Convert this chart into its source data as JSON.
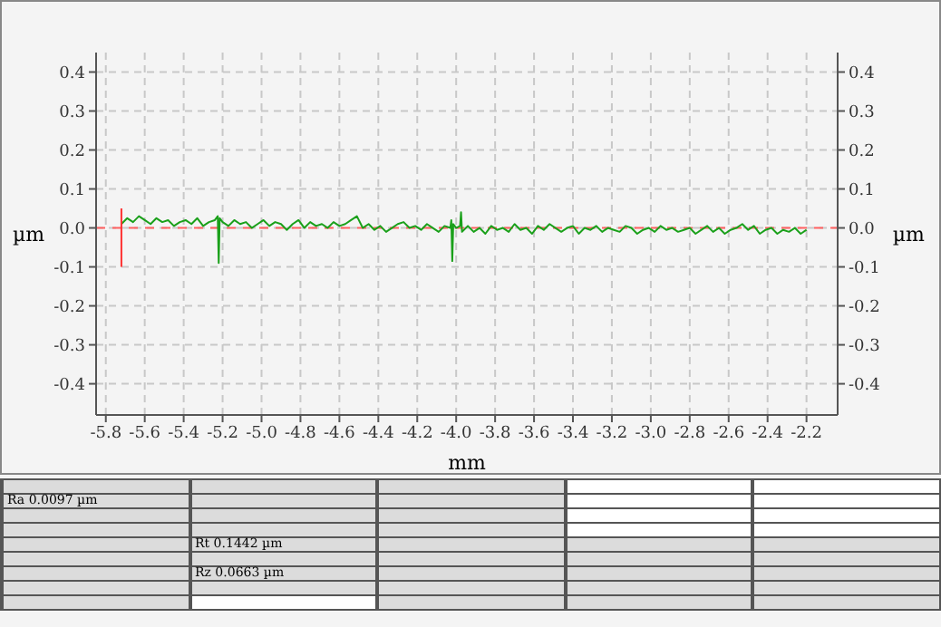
{
  "chart_data": {
    "type": "line",
    "xlabel": "mm",
    "ylabel": "µm",
    "y2label": "µm",
    "xlim": [
      -5.85,
      -2.04
    ],
    "xticks": [
      -5.8,
      -5.6,
      -5.4,
      -5.2,
      {
        "value": -5,
        "label": "-5.0"
      },
      -4.8,
      -4.6,
      -4.4,
      -4.2,
      {
        "value": -4,
        "label": "-4.0"
      },
      -3.8,
      -3.6,
      -3.4,
      -3.2,
      {
        "value": -3,
        "label": "-3.0"
      },
      -2.8,
      -2.6,
      -2.4,
      -2.2
    ],
    "ylim": [
      -0.48,
      0.45
    ],
    "yticks": [
      -0.4,
      -0.3,
      -0.2,
      -0.1,
      {
        "value": 0,
        "label": "0.0"
      },
      0.1,
      0.2,
      0.3,
      0.4
    ],
    "y2lim": [
      -0.48,
      0.45
    ],
    "y2ticks": [
      -0.4,
      -0.3,
      -0.2,
      -0.1,
      {
        "value": 0,
        "label": "0.0"
      },
      0.1,
      0.2,
      0.3,
      0.4
    ],
    "grid": true,
    "marker": "none",
    "ref_lines": [
      {
        "axis": "y",
        "value": 0,
        "color": "#ff6060",
        "line_style": "dashed"
      }
    ],
    "series": [
      {
        "color": "#1aa01a",
        "line_style": "solid",
        "x": [
          -5.72,
          -5.69,
          -5.66,
          -5.63,
          -5.6,
          -5.57,
          -5.54,
          -5.51,
          -5.48,
          -5.45,
          -5.42,
          -5.39,
          -5.36,
          -5.33,
          -5.3,
          -5.27,
          -5.24,
          -5.225,
          -5.22,
          -5.215,
          -5.2,
          -5.17,
          -5.14,
          -5.11,
          -5.08,
          -5.05,
          -5.02,
          -4.99,
          -4.96,
          -4.93,
          -4.9,
          -4.87,
          -4.84,
          -4.81,
          -4.78,
          -4.75,
          -4.72,
          -4.69,
          -4.66,
          -4.63,
          -4.6,
          -4.57,
          -4.54,
          -4.51,
          -4.48,
          -4.45,
          -4.42,
          -4.39,
          -4.36,
          -4.33,
          -4.3,
          -4.27,
          -4.24,
          -4.21,
          -4.18,
          -4.15,
          -4.12,
          -4.09,
          -4.06,
          -4.03,
          -4.025,
          -4.02,
          -4.015,
          -4.0,
          -3.98,
          -3.975,
          -3.97,
          -3.94,
          -3.91,
          -3.88,
          -3.85,
          -3.82,
          -3.79,
          -3.76,
          -3.73,
          -3.7,
          -3.67,
          -3.64,
          -3.61,
          -3.58,
          -3.55,
          -3.52,
          -3.49,
          -3.46,
          -3.43,
          -3.4,
          -3.37,
          -3.34,
          -3.31,
          -3.28,
          -3.25,
          -3.22,
          -3.19,
          -3.16,
          -3.13,
          -3.1,
          -3.07,
          -3.04,
          -3.01,
          -2.98,
          -2.95,
          -2.92,
          -2.89,
          -2.86,
          -2.83,
          -2.8,
          -2.77,
          -2.74,
          -2.71,
          -2.68,
          -2.65,
          -2.62,
          -2.59,
          -2.56,
          -2.53,
          -2.5,
          -2.47,
          -2.44,
          -2.41,
          -2.38,
          -2.35,
          -2.32,
          -2.29,
          -2.26,
          -2.23,
          -2.2
        ],
        "values": [
          0.01,
          0.025,
          0.015,
          0.03,
          0.02,
          0.01,
          0.025,
          0.015,
          0.02,
          0.005,
          0.015,
          0.02,
          0.01,
          0.025,
          0.005,
          0.015,
          0.02,
          0.03,
          -0.09,
          0.025,
          0.015,
          0.005,
          0.02,
          0.01,
          0.015,
          0.0,
          0.01,
          0.02,
          0.005,
          0.015,
          0.01,
          -0.005,
          0.01,
          0.02,
          0.0,
          0.015,
          0.005,
          0.01,
          0.0,
          0.015,
          0.005,
          0.01,
          0.02,
          0.03,
          0.0,
          0.01,
          -0.005,
          0.005,
          -0.01,
          0.0,
          0.01,
          0.015,
          0.0,
          0.005,
          -0.005,
          0.01,
          0.0,
          -0.01,
          0.005,
          0.0,
          0.02,
          -0.085,
          0.01,
          0.0,
          0.005,
          0.04,
          -0.01,
          0.005,
          -0.01,
          0.0,
          -0.015,
          0.005,
          -0.005,
          0.0,
          -0.01,
          0.01,
          -0.005,
          0.0,
          -0.015,
          0.005,
          -0.005,
          0.01,
          0.0,
          -0.01,
          0.0,
          0.005,
          -0.015,
          0.0,
          -0.005,
          0.005,
          -0.01,
          0.0,
          -0.005,
          -0.01,
          0.005,
          0.0,
          -0.015,
          -0.005,
          0.0,
          -0.01,
          0.005,
          -0.005,
          0.0,
          -0.01,
          -0.005,
          0.0,
          -0.015,
          -0.005,
          0.005,
          -0.01,
          0.0,
          -0.015,
          -0.005,
          0.0,
          0.01,
          -0.005,
          0.005,
          -0.015,
          -0.005,
          0.0,
          -0.015,
          -0.005,
          -0.01,
          0.0,
          -0.015,
          -0.005
        ]
      },
      {
        "color": "#ff3030",
        "line_style": "solid",
        "x": [
          -5.72,
          -5.72
        ],
        "values": [
          -0.1,
          0.05
        ]
      }
    ],
    "annotations": [
      "Ra 0.0097 µm",
      "Rt 0.1442 µm",
      "Rz 0.0663 µm"
    ]
  }
}
